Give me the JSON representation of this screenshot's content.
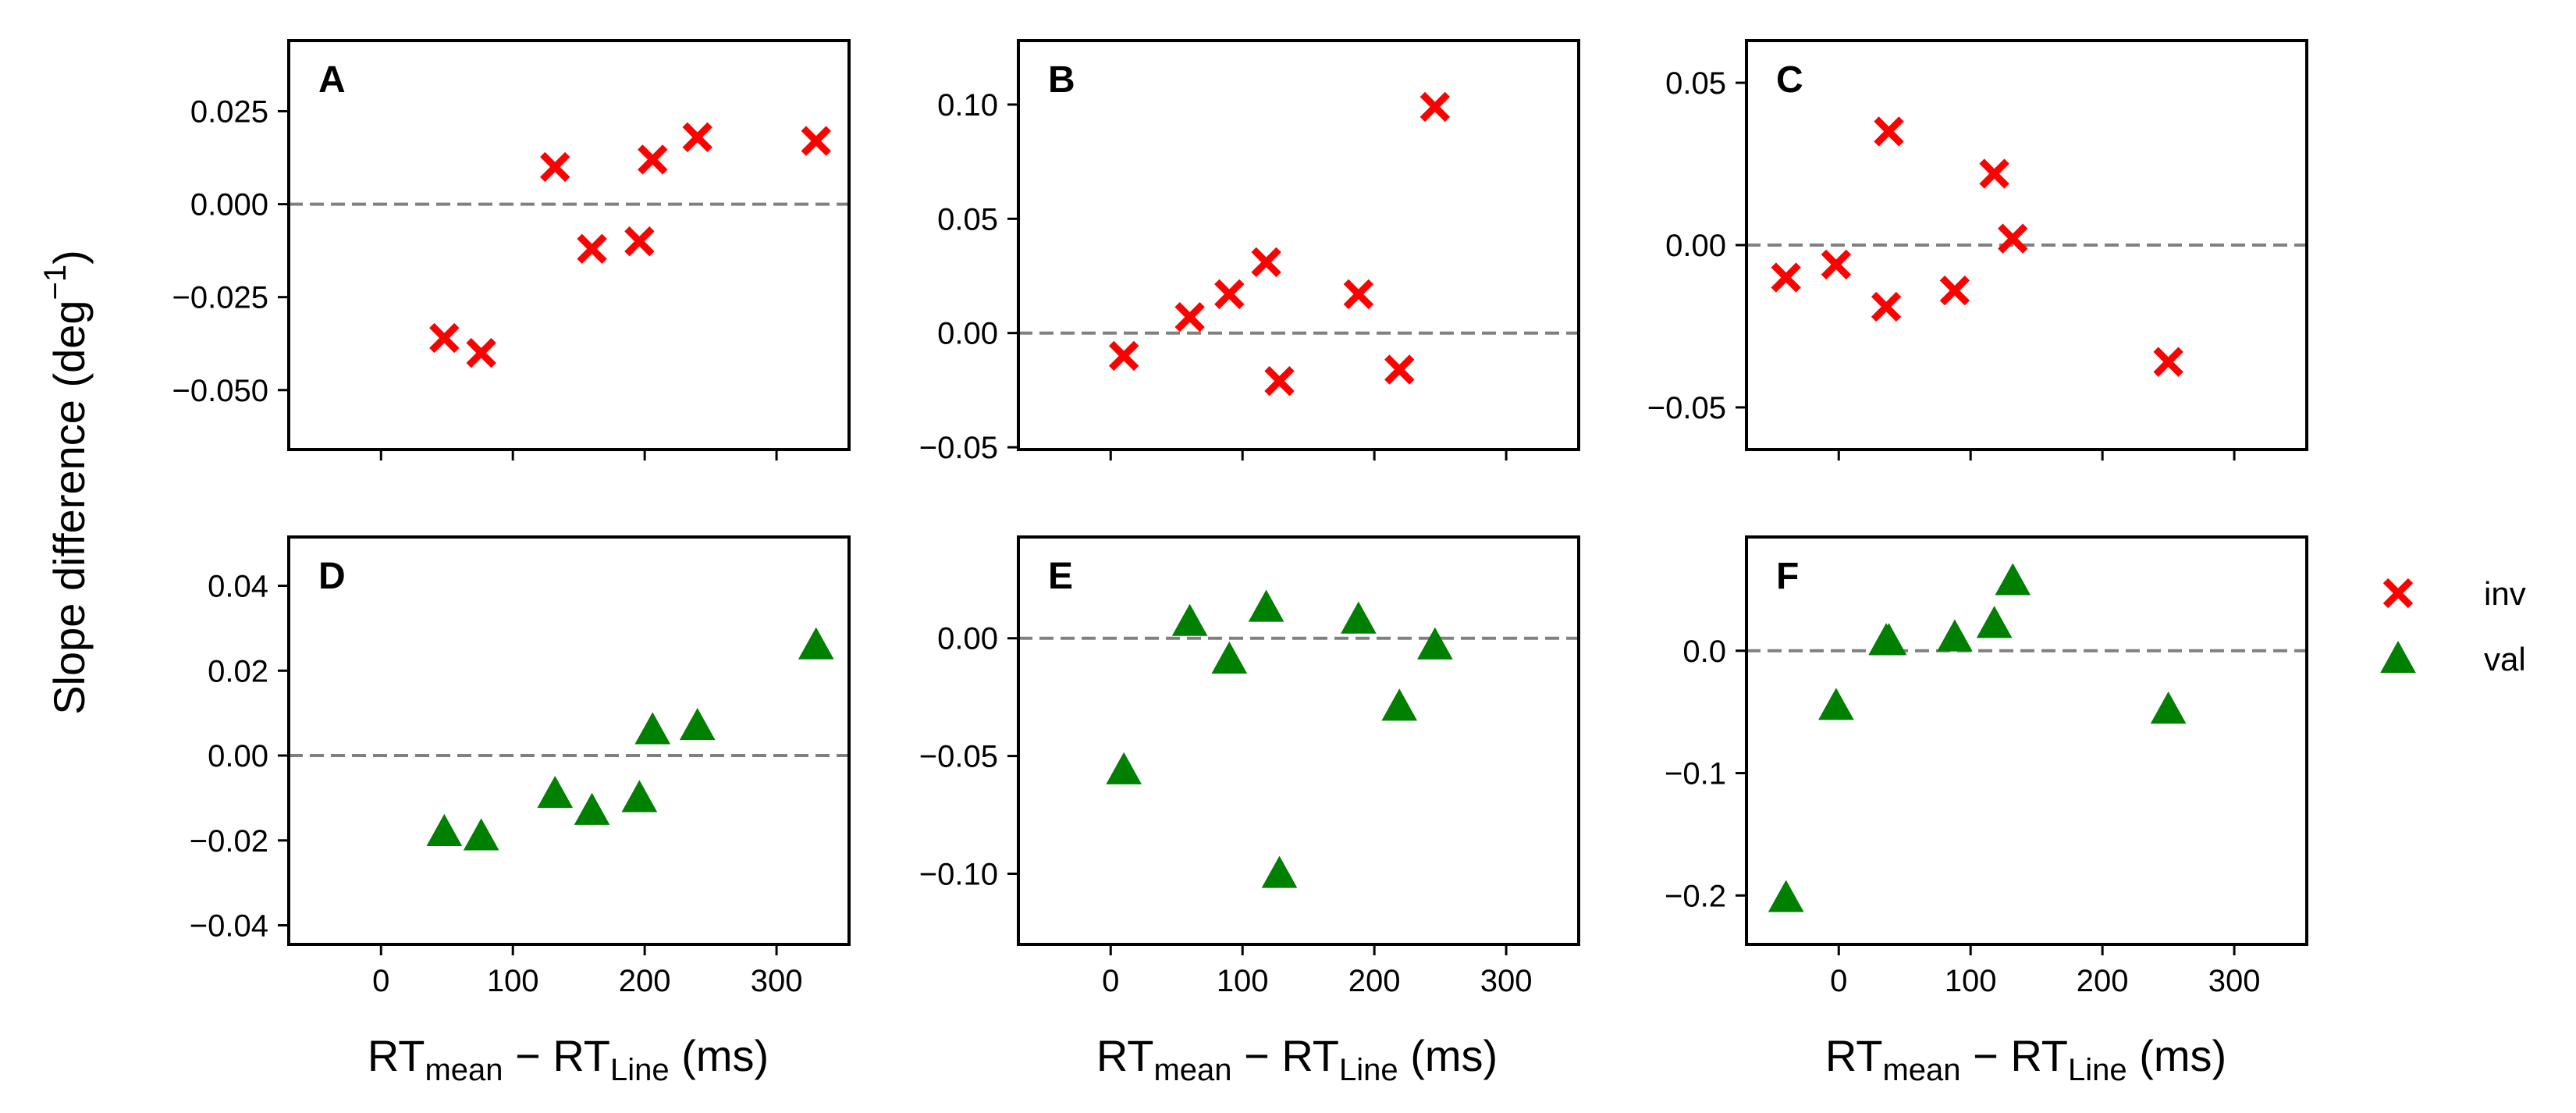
{
  "chart_data": {
    "type": "scatter",
    "ylabel": {
      "text": "Slope difference (deg",
      "sup": "−1",
      "close": ")"
    },
    "xlabel": {
      "rt": "RT",
      "sub_mean": "mean",
      "minus": " − ",
      "sub_line": "Line",
      "unit": " (ms)"
    },
    "legend": {
      "position": "right",
      "entries": [
        {
          "name": "inv",
          "marker": "x",
          "color": "#ff0000"
        },
        {
          "name": "val",
          "marker": "triangle",
          "color": "#008000"
        }
      ]
    },
    "colors": {
      "inv": "#ff0000",
      "val": "#008000",
      "reference_line": "#808080"
    },
    "panels": [
      {
        "label": "A",
        "series": "inv",
        "marker": "x",
        "color": "#ff0000",
        "xlim": [
          -70,
          355
        ],
        "ylim": [
          -0.066,
          0.044
        ],
        "xticks": [
          0,
          100,
          200,
          300
        ],
        "show_xticklabels": false,
        "yticks": [
          -0.05,
          -0.025,
          0.0,
          0.025
        ],
        "yticklabels": [
          "−0.050",
          "−0.025",
          "0.000",
          "0.025"
        ],
        "points": [
          {
            "x": 48,
            "y": -0.036
          },
          {
            "x": 76,
            "y": -0.04
          },
          {
            "x": 132,
            "y": 0.01
          },
          {
            "x": 160,
            "y": -0.012
          },
          {
            "x": 196,
            "y": -0.01
          },
          {
            "x": 206,
            "y": 0.012
          },
          {
            "x": 240,
            "y": 0.018
          },
          {
            "x": 330,
            "y": 0.017
          }
        ]
      },
      {
        "label": "B",
        "series": "inv",
        "marker": "x",
        "color": "#ff0000",
        "xlim": [
          -70,
          355
        ],
        "ylim": [
          -0.051,
          0.128
        ],
        "xticks": [
          0,
          100,
          200,
          300
        ],
        "show_xticklabels": false,
        "yticks": [
          -0.05,
          0.0,
          0.05,
          0.1
        ],
        "yticklabels": [
          "−0.05",
          "0.00",
          "0.05",
          "0.10"
        ],
        "points": [
          {
            "x": 10,
            "y": -0.01
          },
          {
            "x": 60,
            "y": 0.007
          },
          {
            "x": 90,
            "y": 0.017
          },
          {
            "x": 118,
            "y": 0.031
          },
          {
            "x": 128,
            "y": -0.021
          },
          {
            "x": 188,
            "y": 0.017
          },
          {
            "x": 219,
            "y": -0.016
          },
          {
            "x": 246,
            "y": 0.099
          }
        ]
      },
      {
        "label": "C",
        "series": "inv",
        "marker": "x",
        "color": "#ff0000",
        "xlim": [
          -70,
          355
        ],
        "ylim": [
          -0.063,
          0.063
        ],
        "xticks": [
          0,
          100,
          200,
          300
        ],
        "show_xticklabels": false,
        "yticks": [
          -0.05,
          0.0,
          0.05
        ],
        "yticklabels": [
          "−0.05",
          "0.00",
          "0.05"
        ],
        "points": [
          {
            "x": -40,
            "y": -0.01
          },
          {
            "x": -2,
            "y": -0.006
          },
          {
            "x": 36,
            "y": -0.019
          },
          {
            "x": 38,
            "y": 0.035
          },
          {
            "x": 88,
            "y": -0.014
          },
          {
            "x": 118,
            "y": 0.022
          },
          {
            "x": 132,
            "y": 0.002
          },
          {
            "x": 250,
            "y": -0.036
          }
        ]
      },
      {
        "label": "D",
        "series": "val",
        "marker": "triangle",
        "color": "#008000",
        "xlim": [
          -70,
          355
        ],
        "ylim": [
          -0.0445,
          0.0515
        ],
        "xticks": [
          0,
          100,
          200,
          300
        ],
        "xticklabels": [
          "0",
          "100",
          "200",
          "300"
        ],
        "yticks": [
          -0.04,
          -0.02,
          0.0,
          0.02,
          0.04
        ],
        "yticklabels": [
          "−0.04",
          "−0.02",
          "0.00",
          "0.02",
          "0.04"
        ],
        "points": [
          {
            "x": 48,
            "y": -0.018
          },
          {
            "x": 76,
            "y": -0.019
          },
          {
            "x": 132,
            "y": -0.009
          },
          {
            "x": 160,
            "y": -0.013
          },
          {
            "x": 196,
            "y": -0.01
          },
          {
            "x": 206,
            "y": 0.006
          },
          {
            "x": 240,
            "y": 0.007
          },
          {
            "x": 330,
            "y": 0.026
          }
        ]
      },
      {
        "label": "E",
        "series": "val",
        "marker": "triangle",
        "color": "#008000",
        "xlim": [
          -70,
          355
        ],
        "ylim": [
          -0.13,
          0.043
        ],
        "xticks": [
          0,
          100,
          200,
          300
        ],
        "xticklabels": [
          "0",
          "100",
          "200",
          "300"
        ],
        "yticks": [
          -0.1,
          -0.05,
          0.0
        ],
        "yticklabels": [
          "−0.10",
          "−0.05",
          "0.00"
        ],
        "points": [
          {
            "x": 10,
            "y": -0.056
          },
          {
            "x": 60,
            "y": 0.007
          },
          {
            "x": 90,
            "y": -0.009
          },
          {
            "x": 118,
            "y": 0.013
          },
          {
            "x": 128,
            "y": -0.1
          },
          {
            "x": 188,
            "y": 0.008
          },
          {
            "x": 219,
            "y": -0.029
          },
          {
            "x": 246,
            "y": -0.003
          }
        ]
      },
      {
        "label": "F",
        "series": "val",
        "marker": "triangle",
        "color": "#008000",
        "xlim": [
          -70,
          355
        ],
        "ylim": [
          -0.24,
          0.093
        ],
        "xticks": [
          0,
          100,
          200,
          300
        ],
        "xticklabels": [
          "0",
          "100",
          "200",
          "300"
        ],
        "yticks": [
          -0.2,
          -0.1,
          0.0
        ],
        "yticklabels": [
          "−0.2",
          "−0.1",
          "0.0"
        ],
        "points": [
          {
            "x": -40,
            "y": -0.202
          },
          {
            "x": -2,
            "y": -0.045
          },
          {
            "x": 36,
            "y": 0.008
          },
          {
            "x": 38,
            "y": 0.008
          },
          {
            "x": 88,
            "y": 0.011
          },
          {
            "x": 118,
            "y": 0.022
          },
          {
            "x": 132,
            "y": 0.057
          },
          {
            "x": 250,
            "y": -0.048
          }
        ]
      }
    ]
  }
}
